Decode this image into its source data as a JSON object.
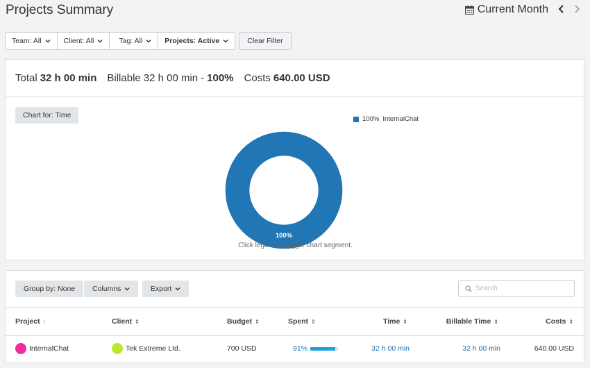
{
  "page": {
    "title": "Projects Summary"
  },
  "period": {
    "label": "Current Month",
    "prev_icon": "chevron-left-icon",
    "next_icon": "chevron-right-icon"
  },
  "filters": [
    {
      "label": "Team: All",
      "bold": false
    },
    {
      "label": "Client: All",
      "bold": false
    },
    {
      "label": "Tag: All",
      "bold": false
    },
    {
      "label": "Projects: Active",
      "bold": true
    }
  ],
  "clear_filter": "Clear Filter",
  "totals": {
    "total_label": "Total",
    "total_value": "32 h 00 min",
    "billable_label": "Billable",
    "billable_value": "32 h 00 min",
    "billable_sep": "-",
    "billable_pct": "100%",
    "costs_label": "Costs",
    "costs_value": "640.00 USD"
  },
  "chart": {
    "chart_for": "Chart for: Time",
    "hint": "Click legend to toggle chart segment.",
    "colors": {
      "segment": "#2176b6"
    }
  },
  "chart_data": {
    "type": "pie",
    "categories": [
      "InternalChat"
    ],
    "values": [
      100
    ],
    "labels": [
      "100%"
    ],
    "legend": [
      {
        "pct": "100%",
        "name": "InternalChat"
      }
    ],
    "legend_position": "top-right"
  },
  "toolbar": {
    "group_by": "Group by: None",
    "columns": "Columns",
    "export": "Export",
    "search_placeholder": "Search"
  },
  "table": {
    "headers": {
      "project": "Project",
      "client": "Client",
      "budget": "Budget",
      "spent": "Spent",
      "time": "Time",
      "billable_time": "Billable Time",
      "costs": "Costs"
    },
    "sort_icons": {
      "asc": "↑",
      "both": "⇕"
    },
    "rows": [
      {
        "project": "InternalChat",
        "project_color": "#f12c9b",
        "client": "Tek Extreme Ltd.",
        "client_color": "#b8e82c",
        "budget": "700 USD",
        "spent": "91%",
        "spent_fraction": 0.91,
        "time": "32 h 00 min",
        "billable_time": "32 h 00 min",
        "costs": "640.00 USD"
      }
    ]
  }
}
